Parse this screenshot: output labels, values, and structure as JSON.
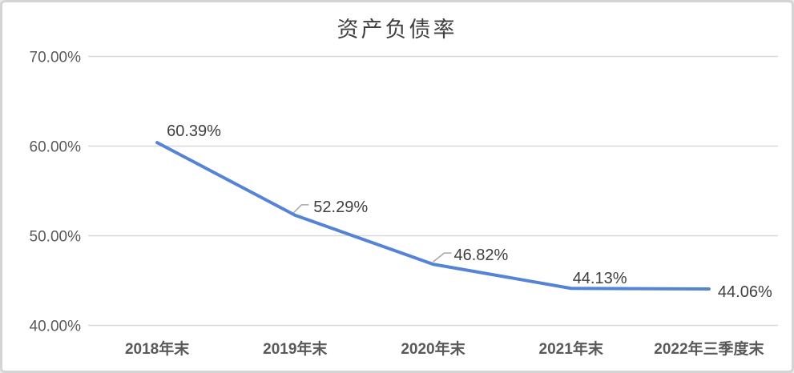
{
  "chart_data": {
    "type": "line",
    "title": "资产负债率",
    "categories": [
      "2018年末",
      "2019年末",
      "2020年末",
      "2021年末",
      "2022年三季度末"
    ],
    "series": [
      {
        "name": "资产负债率",
        "values": [
          60.39,
          52.29,
          46.82,
          44.13,
          44.06
        ]
      }
    ],
    "data_labels": [
      "60.39%",
      "52.29%",
      "46.82%",
      "44.13%",
      "44.06%"
    ],
    "ylim": [
      40,
      70
    ],
    "yticks": [
      {
        "value": 70,
        "label": "70.00%"
      },
      {
        "value": 60,
        "label": "60.00%"
      },
      {
        "value": 50,
        "label": "50.00%"
      },
      {
        "value": 40,
        "label": "40.00%"
      }
    ],
    "grid": true,
    "legend_position": "none",
    "colors": {
      "line": "#5584d6",
      "gridline": "#d9d9d9",
      "axis_tick_label": "#595959",
      "data_label": "#404040",
      "leader_line": "#a6a6a6",
      "title": "#404040",
      "background": "#ffffff",
      "frame_border": "#d4d4d4"
    }
  }
}
